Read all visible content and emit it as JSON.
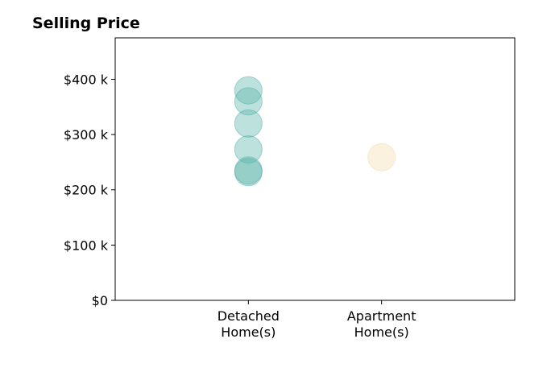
{
  "chart_data": {
    "type": "scatter",
    "title": "Selling Price",
    "xlabel": "",
    "ylabel": "",
    "categories": [
      [
        "Detached",
        "Home(s)"
      ],
      [
        "Apartment",
        "Home(s)"
      ]
    ],
    "yticks": [
      {
        "value": 0,
        "label": "$0"
      },
      {
        "value": 100000,
        "label": "$100 k"
      },
      {
        "value": 200000,
        "label": "$200 k"
      },
      {
        "value": 300000,
        "label": "$300 k"
      },
      {
        "value": 400000,
        "label": "$400 k"
      }
    ],
    "ylim": [
      0,
      475000
    ],
    "xlim": [
      -1,
      2
    ],
    "grid": false,
    "legend": "none",
    "series": [
      {
        "category_index": 0,
        "color": "#5bb5ab",
        "values": [
          380000,
          360000,
          320000,
          273000,
          235000,
          232000
        ]
      },
      {
        "category_index": 1,
        "color": "#f3dfae",
        "values": [
          259000
        ]
      }
    ]
  }
}
